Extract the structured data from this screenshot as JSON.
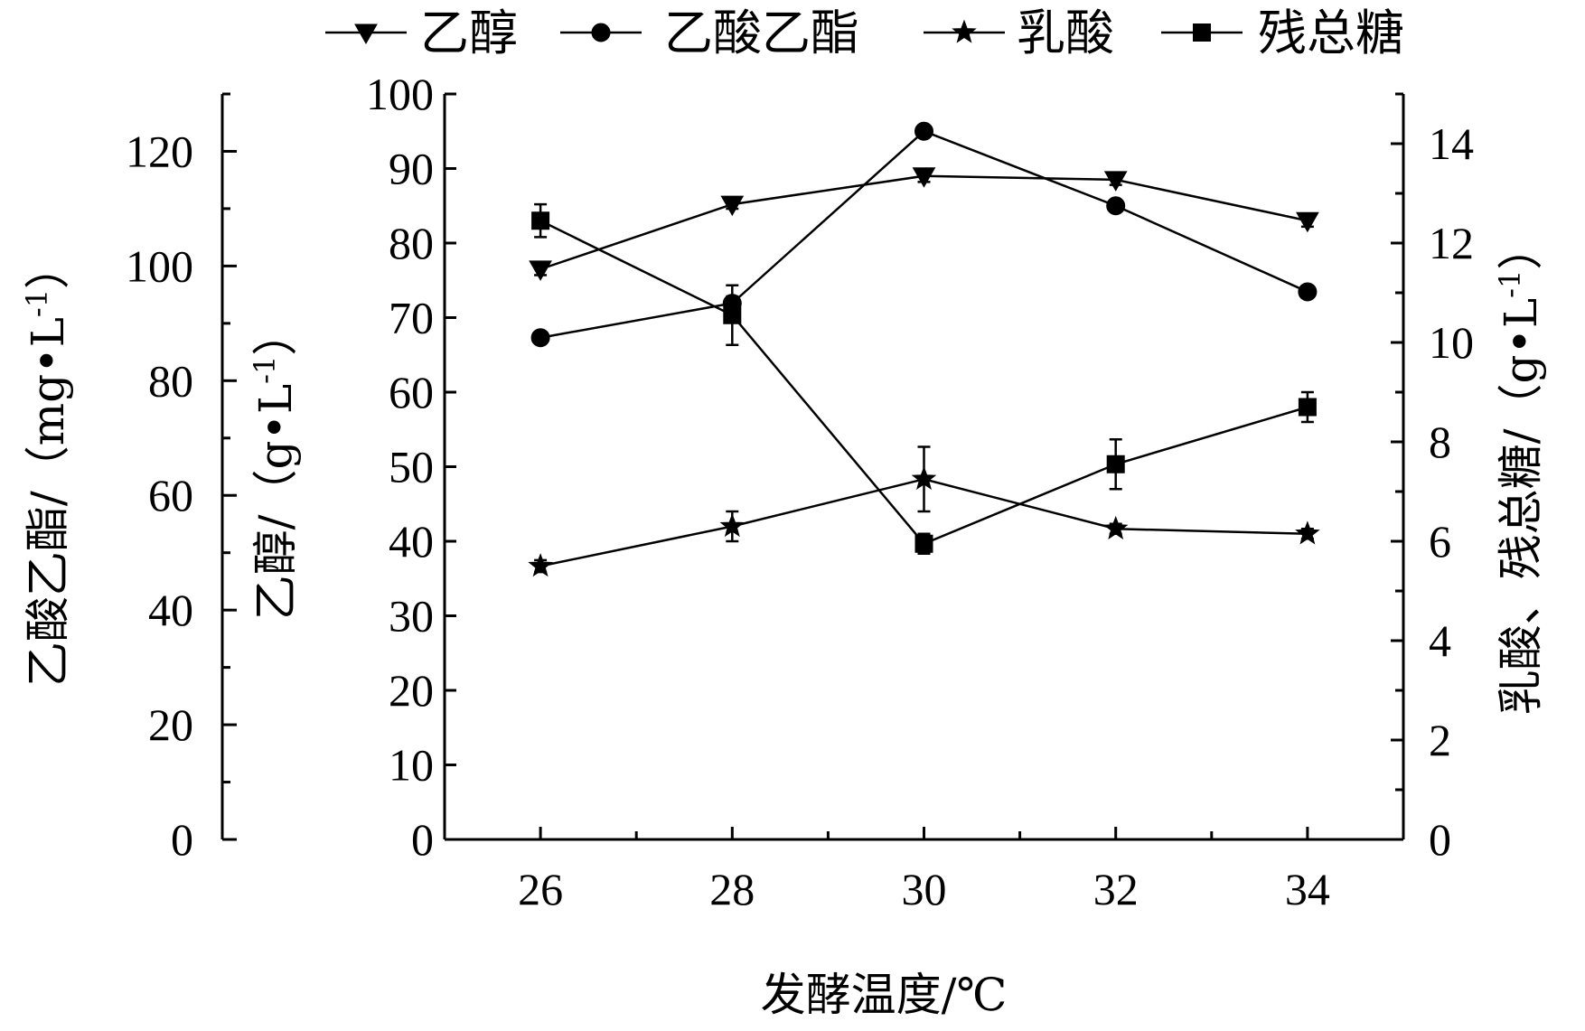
{
  "chart_data": {
    "type": "line",
    "x": [
      26,
      28,
      30,
      32,
      34
    ],
    "xlabel": "发酵温度/℃",
    "xlim": [
      25,
      35
    ],
    "xticks": [
      26,
      28,
      30,
      32,
      34
    ],
    "y_axes": {
      "ethyl_acetate": {
        "label_main": "乙酸乙酯/（mg•L",
        "label_sup": "-1",
        "label_end": "）",
        "ylim": [
          0,
          130
        ],
        "ticks": [
          0,
          20,
          40,
          60,
          80,
          100,
          120
        ],
        "position": "far-left"
      },
      "ethanol": {
        "label_main": "乙醇/（g•L",
        "label_sup": "-1",
        "label_end": "）",
        "ylim": [
          0,
          100
        ],
        "ticks": [
          0,
          10,
          20,
          30,
          40,
          50,
          60,
          70,
          80,
          90,
          100
        ],
        "position": "left"
      },
      "acid_sugar": {
        "label_main": "乳酸、残总糖/（g•L",
        "label_sup": "-1",
        "label_end": "）",
        "ylim": [
          0,
          15
        ],
        "ticks": [
          0,
          2,
          4,
          6,
          8,
          10,
          12,
          14
        ],
        "position": "right"
      }
    },
    "series": [
      {
        "name": "乙醇",
        "marker": "triangle-down",
        "axis": "ethanol",
        "values": [
          76.5,
          85.2,
          89.0,
          88.5,
          83.0
        ],
        "errors": [
          0.8,
          0.6,
          0.8,
          0.7,
          0.8
        ]
      },
      {
        "name": "乙酸乙酯",
        "marker": "circle",
        "axis": "ethyl_acetate",
        "values": [
          87.5,
          93.5,
          123.5,
          110.5,
          95.5
        ],
        "errors": [
          0.6,
          1.2,
          0.8,
          0.8,
          0.7
        ]
      },
      {
        "name": "乳酸",
        "marker": "star",
        "axis": "acid_sugar",
        "values": [
          5.5,
          6.3,
          7.25,
          6.25,
          6.15
        ],
        "errors": [
          0.12,
          0.3,
          0.65,
          0.1,
          0.1
        ]
      },
      {
        "name": "残总糖",
        "marker": "square",
        "axis": "acid_sugar",
        "values": [
          12.45,
          10.55,
          5.95,
          7.55,
          8.7
        ],
        "errors": [
          0.33,
          0.6,
          0.2,
          0.5,
          0.3
        ]
      }
    ],
    "legend_position": "top",
    "grid": false
  }
}
